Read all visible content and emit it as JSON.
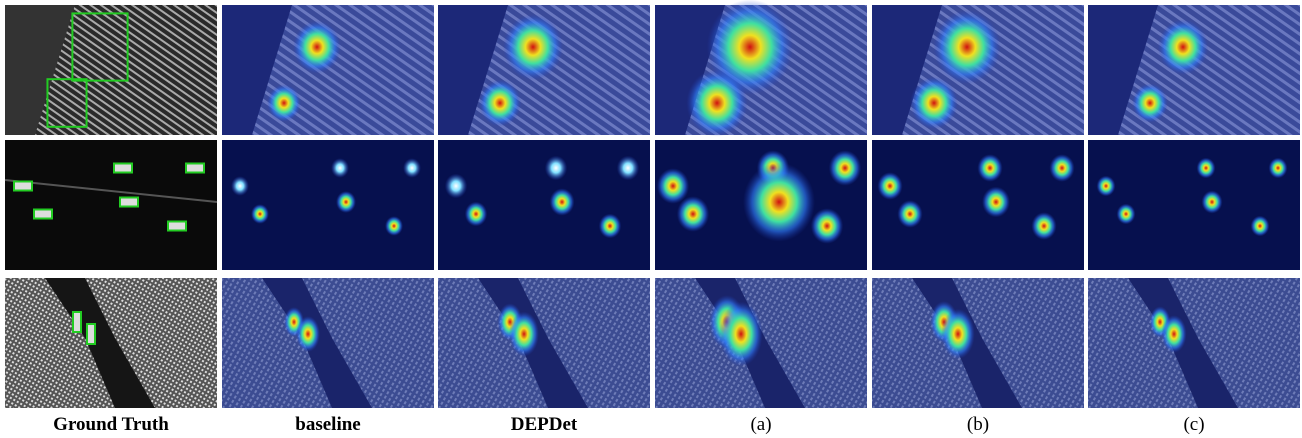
{
  "columns": [
    "Ground Truth",
    "baseline",
    "DEPDet",
    "(a)",
    "(b)",
    "(c)"
  ]
}
